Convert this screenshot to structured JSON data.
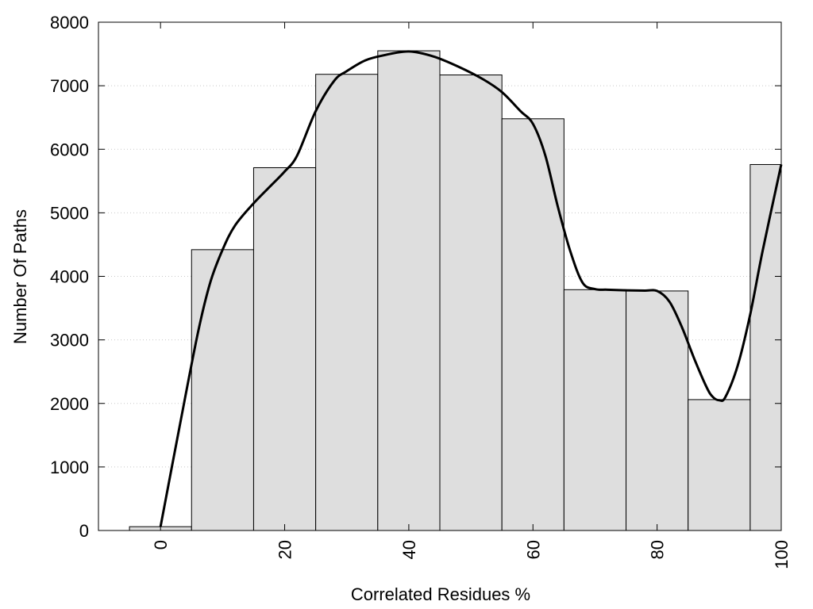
{
  "chart_data": {
    "type": "bar",
    "bins": [
      0,
      10,
      20,
      30,
      40,
      50,
      60,
      70,
      80,
      90,
      100
    ],
    "values": [
      60,
      4420,
      5710,
      7180,
      7550,
      7170,
      6480,
      3790,
      3770,
      2060,
      5760
    ],
    "bar_width": 10,
    "curve_type": "line",
    "curve": {
      "x": [
        0,
        3,
        6,
        8,
        10,
        12,
        15,
        18,
        20,
        22,
        25,
        28,
        30,
        33,
        36,
        40,
        44,
        48,
        52,
        55,
        58,
        60,
        62,
        64,
        66,
        68,
        70,
        72,
        75,
        78,
        80,
        82,
        84,
        86,
        88,
        89,
        90,
        91,
        93,
        95,
        97,
        100
      ],
      "y": [
        60,
        1600,
        3100,
        3900,
        4420,
        4800,
        5150,
        5450,
        5650,
        5900,
        6600,
        7080,
        7230,
        7400,
        7480,
        7540,
        7460,
        7300,
        7100,
        6900,
        6600,
        6400,
        5900,
        5100,
        4400,
        3900,
        3800,
        3790,
        3780,
        3775,
        3770,
        3600,
        3200,
        2700,
        2250,
        2100,
        2050,
        2100,
        2600,
        3400,
        4400,
        5760
      ]
    },
    "xlabel": "Correlated Residues %",
    "ylabel": "Number Of Paths",
    "xlim": [
      -10,
      100
    ],
    "ylim": [
      0,
      8000
    ],
    "xticks": [
      "0",
      "20",
      "40",
      "60",
      "80",
      "100"
    ],
    "yticks": [
      "0",
      "1000",
      "2000",
      "3000",
      "4000",
      "5000",
      "6000",
      "7000",
      "8000"
    ],
    "grid": "y-dotted",
    "colors": {
      "bar_fill": "#dedede",
      "bar_stroke": "#000000",
      "curve": "#000000",
      "grid": "#c8c8c8"
    }
  }
}
